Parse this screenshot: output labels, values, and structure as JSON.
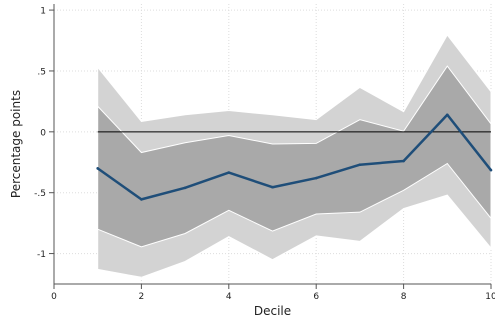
{
  "chart_data": {
    "type": "line",
    "xlabel": "Decile",
    "ylabel": "Percentage points",
    "xlim": [
      0,
      10
    ],
    "ylim": [
      -1.25,
      1.05
    ],
    "x_ticks": [
      0,
      2,
      4,
      6,
      8,
      10
    ],
    "x_tick_labels": [
      "0",
      "2",
      "4",
      "6",
      "8",
      "10"
    ],
    "y_ticks": [
      -1,
      -0.5,
      0,
      0.5,
      1
    ],
    "y_tick_labels": [
      "-1",
      "-.5",
      "0",
      ".5",
      "1"
    ],
    "grid": true,
    "reference_line_y": 0,
    "x": [
      1,
      2,
      3,
      4,
      5,
      6,
      7,
      8,
      9,
      10
    ],
    "series": [
      {
        "values": [
          -0.3,
          -0.555,
          -0.46,
          -0.335,
          -0.455,
          -0.38,
          -0.27,
          -0.24,
          0.14,
          -0.315
        ]
      }
    ],
    "bands": [
      {
        "role": "outer",
        "lower": [
          -1.13,
          -1.195,
          -1.065,
          -0.86,
          -1.05,
          -0.855,
          -0.9,
          -0.63,
          -0.52,
          -0.955
        ],
        "upper": [
          0.53,
          0.085,
          0.14,
          0.175,
          0.14,
          0.1,
          0.365,
          0.165,
          0.795,
          0.33
        ]
      },
      {
        "role": "inner",
        "lower": [
          -0.8,
          -0.945,
          -0.835,
          -0.645,
          -0.815,
          -0.675,
          -0.66,
          -0.48,
          -0.26,
          -0.71
        ],
        "upper": [
          0.21,
          -0.17,
          -0.09,
          -0.03,
          -0.1,
          -0.095,
          0.1,
          0.005,
          0.54,
          0.065
        ]
      }
    ],
    "colors": {
      "line": "#1f4e79",
      "outer_band": "#d3d3d3",
      "inner_band": "#a9a9a9",
      "band_edge": "#ffffff",
      "zero_line": "#000000",
      "grid": "#dddddd",
      "axis": "#555555"
    }
  }
}
